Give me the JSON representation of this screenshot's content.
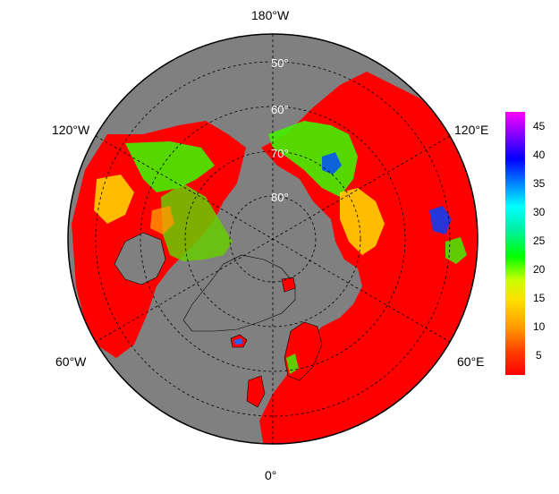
{
  "map": {
    "projection": "north-polar-stereographic",
    "ocean_color": "#808080",
    "land_background_color": "#ff0000",
    "longitude_labels": {
      "top": "180°W",
      "upper_left": "120°W",
      "upper_right": "120°E",
      "lower_left": "60°W",
      "lower_right": "60°E",
      "bottom": "0°"
    },
    "latitude_labels": [
      "50°",
      "60°",
      "70°",
      "80°"
    ]
  },
  "colorbar": {
    "min": 1,
    "max": 47,
    "ticks": [
      "45",
      "40",
      "35",
      "30",
      "25",
      "20",
      "15",
      "10",
      "5"
    ],
    "colors": [
      "#ff0000",
      "#ff6a00",
      "#ffcc00",
      "#ffff00",
      "#00ff00",
      "#00e0a0",
      "#00ffff",
      "#0080ff",
      "#0000ff",
      "#8000ff",
      "#ff00ff"
    ]
  }
}
